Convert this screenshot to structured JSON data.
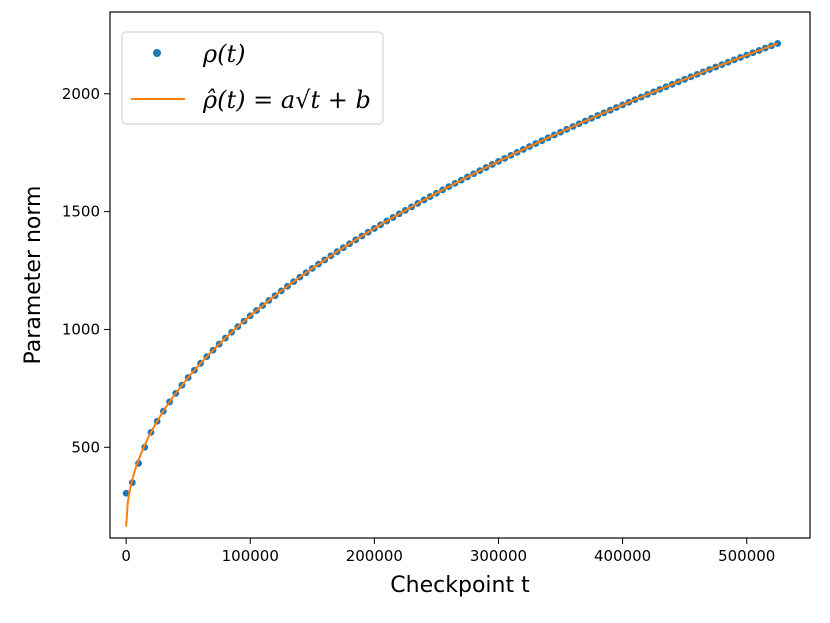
{
  "chart_data": {
    "type": "line",
    "xlabel": "Checkpoint t",
    "ylabel": "Parameter norm",
    "xlim": [
      -13000,
      551000
    ],
    "ylim": [
      115,
      2347
    ],
    "xticks": [
      0,
      100000,
      200000,
      300000,
      400000,
      500000
    ],
    "xtick_labels": [
      "0",
      "100000",
      "200000",
      "300000",
      "400000",
      "500000"
    ],
    "yticks": [
      500,
      1000,
      1500,
      2000
    ],
    "ytick_labels": [
      "500",
      "1000",
      "1500",
      "2000"
    ],
    "grid": false,
    "legend_position": "top-left",
    "series": [
      {
        "name": "ρ(t)",
        "kind": "scatter",
        "color": "#1f77b4",
        "x_start": 0,
        "x_step": 5000,
        "x_end": 525000,
        "first_values": [
          305,
          350,
          432,
          500
        ]
      },
      {
        "name": "ρ̂(t) = a√t + b",
        "kind": "line",
        "color": "#ff7f0e",
        "a": 2.83,
        "b": 163,
        "x_start": 0,
        "x_end": 525000
      }
    ]
  }
}
